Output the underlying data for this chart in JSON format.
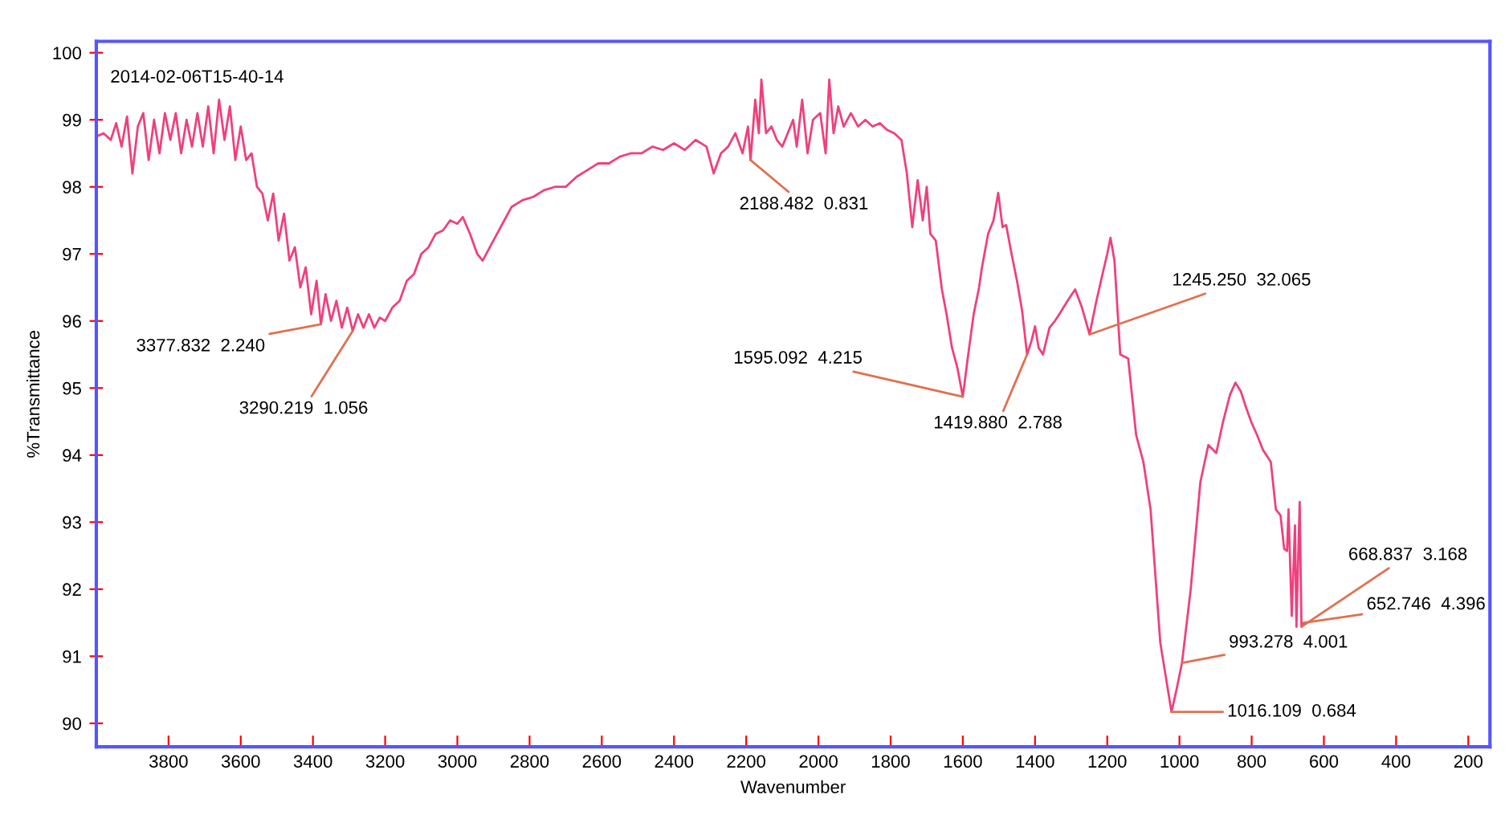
{
  "chart_data": {
    "type": "line",
    "xlabel": "Wavenumber",
    "ylabel": "%Transmittance",
    "xlim": [
      4000,
      140
    ],
    "ylim": [
      89.65,
      100.17
    ],
    "xticks": [
      3800,
      3600,
      3400,
      3200,
      3000,
      2800,
      2600,
      2400,
      2200,
      2000,
      1800,
      1600,
      1400,
      1200,
      1000,
      800,
      600,
      400,
      200
    ],
    "yticks": [
      90,
      91,
      92,
      93,
      94,
      95,
      96,
      97,
      98,
      99,
      100
    ],
    "grid": false,
    "legend": false,
    "marker": "none",
    "line_style": "solid",
    "series": [
      {
        "color": "#f0407a",
        "x": [
          4000,
          3980,
          3960,
          3945,
          3930,
          3915,
          3900,
          3885,
          3870,
          3855,
          3840,
          3825,
          3810,
          3795,
          3780,
          3765,
          3750,
          3735,
          3720,
          3705,
          3690,
          3675,
          3660,
          3645,
          3630,
          3615,
          3600,
          3585,
          3570,
          3555,
          3540,
          3525,
          3510,
          3495,
          3480,
          3465,
          3450,
          3435,
          3420,
          3405,
          3390,
          3378,
          3365,
          3350,
          3335,
          3320,
          3305,
          3290,
          3275,
          3260,
          3245,
          3230,
          3215,
          3200,
          3180,
          3160,
          3140,
          3120,
          3100,
          3080,
          3060,
          3040,
          3020,
          3000,
          2985,
          2965,
          2945,
          2930,
          2910,
          2890,
          2870,
          2850,
          2820,
          2790,
          2760,
          2730,
          2700,
          2670,
          2640,
          2610,
          2580,
          2550,
          2520,
          2490,
          2460,
          2430,
          2400,
          2370,
          2340,
          2310,
          2290,
          2270,
          2250,
          2230,
          2210,
          2195,
          2188,
          2175,
          2165,
          2158,
          2145,
          2130,
          2115,
          2100,
          2085,
          2070,
          2060,
          2045,
          2030,
          2015,
          1995,
          1980,
          1970,
          1958,
          1945,
          1930,
          1910,
          1890,
          1870,
          1850,
          1830,
          1810,
          1790,
          1770,
          1755,
          1740,
          1725,
          1711,
          1700,
          1690,
          1675,
          1658,
          1645,
          1630,
          1615,
          1600,
          1585,
          1570,
          1555,
          1547,
          1530,
          1515,
          1502,
          1490,
          1480,
          1465,
          1450,
          1436,
          1422,
          1410,
          1400,
          1390,
          1378,
          1360,
          1345,
          1333,
          1310,
          1289,
          1270,
          1249,
          1230,
          1213,
          1200,
          1191,
          1180,
          1164,
          1142,
          1120,
          1100,
          1080,
          1053,
          1035,
          1022,
          1009,
          993,
          969,
          942,
          920,
          898,
          880,
          860,
          845,
          830,
          815,
          800,
          785,
          769,
          747,
          733,
          720,
          710,
          702,
          698,
          689,
          680,
          676,
          667,
          662,
          655
        ],
        "values": [
          98.75,
          98.8,
          98.7,
          98.95,
          98.6,
          99.05,
          98.2,
          98.9,
          99.1,
          98.4,
          99.0,
          98.5,
          99.1,
          98.7,
          99.1,
          98.5,
          99.0,
          98.6,
          99.1,
          98.6,
          99.2,
          98.5,
          99.3,
          98.7,
          99.2,
          98.4,
          98.9,
          98.4,
          98.5,
          98.0,
          97.9,
          97.5,
          97.9,
          97.2,
          97.6,
          96.9,
          97.1,
          96.5,
          96.8,
          96.1,
          96.6,
          95.95,
          96.4,
          96.0,
          96.3,
          95.9,
          96.2,
          95.85,
          96.1,
          95.9,
          96.1,
          95.9,
          96.05,
          96.0,
          96.2,
          96.3,
          96.6,
          96.7,
          97.0,
          97.1,
          97.3,
          97.35,
          97.5,
          97.45,
          97.55,
          97.3,
          97.0,
          96.9,
          97.1,
          97.3,
          97.5,
          97.7,
          97.8,
          97.85,
          97.95,
          98.0,
          98.0,
          98.15,
          98.25,
          98.35,
          98.35,
          98.45,
          98.5,
          98.5,
          98.6,
          98.55,
          98.65,
          98.55,
          98.7,
          98.6,
          98.2,
          98.5,
          98.6,
          98.8,
          98.5,
          98.9,
          98.4,
          99.3,
          98.8,
          99.6,
          98.8,
          98.9,
          98.7,
          98.6,
          98.8,
          99.0,
          98.6,
          99.3,
          98.5,
          99.0,
          99.1,
          98.5,
          99.6,
          98.8,
          99.2,
          98.9,
          99.1,
          98.9,
          99.0,
          98.9,
          98.95,
          98.85,
          98.8,
          98.7,
          98.2,
          97.4,
          98.1,
          97.5,
          98.0,
          97.3,
          97.2,
          96.47,
          96.1,
          95.6,
          95.3,
          94.87,
          95.5,
          96.1,
          96.5,
          96.8,
          97.3,
          97.5,
          97.91,
          97.4,
          97.43,
          97.0,
          96.6,
          96.16,
          95.5,
          95.7,
          95.92,
          95.6,
          95.5,
          95.9,
          96.0,
          96.1,
          96.3,
          96.47,
          96.2,
          95.8,
          96.3,
          96.7,
          97.0,
          97.24,
          96.9,
          95.5,
          95.44,
          94.3,
          93.9,
          93.19,
          91.2,
          90.6,
          90.17,
          90.48,
          90.9,
          91.99,
          93.6,
          94.15,
          94.03,
          94.48,
          94.9,
          95.08,
          94.95,
          94.7,
          94.48,
          94.3,
          94.08,
          93.9,
          93.19,
          93.1,
          92.6,
          92.57,
          93.19,
          91.6,
          92.95,
          91.44,
          93.3,
          91.44,
          91.5
        ]
      }
    ],
    "annotations": [
      "2014-02-06T15-40-14",
      {
        "text": "3377.832  2.240",
        "x": 3378,
        "y": 95.95
      },
      {
        "text": "3290.219  1.056",
        "x": 3290,
        "y": 95.85
      },
      {
        "text": "2188.482  0.831",
        "x": 2188,
        "y": 98.4
      },
      {
        "text": "1595.092  4.215",
        "x": 1600,
        "y": 94.87
      },
      {
        "text": "1419.880  2.788",
        "x": 1422,
        "y": 95.5
      },
      {
        "text": "1245.250  32.065",
        "x": 1249,
        "y": 95.8
      },
      {
        "text": "993.278  4.001",
        "x": 993,
        "y": 90.9
      },
      {
        "text": "1016.109  0.684",
        "x": 1022,
        "y": 90.17
      },
      {
        "text": "668.837  3.168",
        "x": 662,
        "y": 91.44
      },
      {
        "text": "652.746  4.396",
        "x": 655,
        "y": 91.5
      }
    ]
  }
}
